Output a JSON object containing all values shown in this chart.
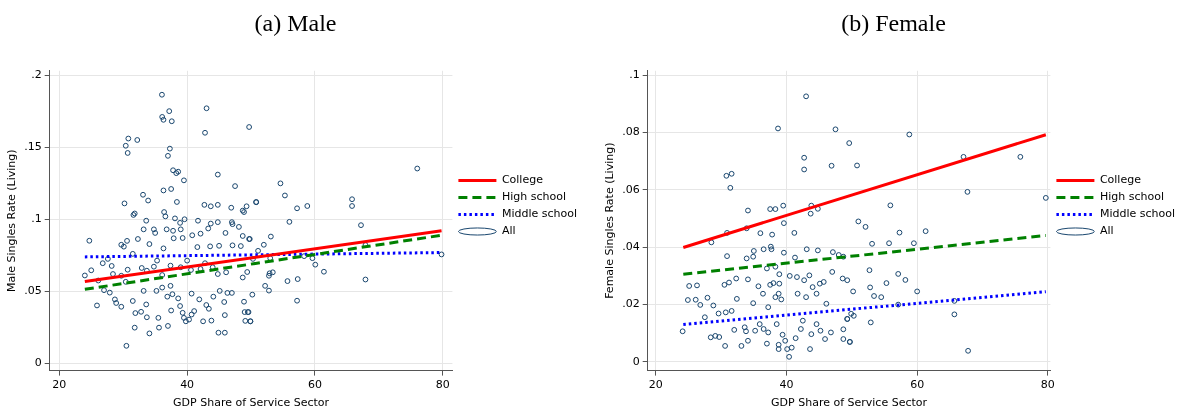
{
  "chart_data": [
    {
      "type": "scatter",
      "title": "(a) Male",
      "xlabel": "GDP Share of Service Sector",
      "ylabel": "Male Singles Rate (Living)",
      "xlim": [
        18.5,
        81.5
      ],
      "ylim": [
        -0.005,
        0.203
      ],
      "xticks": [
        20,
        40,
        60,
        80
      ],
      "yticks": [
        0,
        {
          "value": 0.05,
          "label": ".05"
        },
        {
          "value": 0.1,
          "label": ".1"
        },
        {
          "value": 0.15,
          "label": ".15"
        },
        {
          "value": 0.2,
          "label": ".2"
        }
      ],
      "grid": true,
      "legend": "right",
      "series": [
        {
          "name": "College",
          "type": "line",
          "color": "#ff0000",
          "line_style": "solid",
          "marker": "none",
          "x": [
            24.0,
            79.8
          ],
          "values": [
            0.0568,
            0.092
          ]
        },
        {
          "name": "High school",
          "type": "line",
          "color": "#008000",
          "line_style": "dashed",
          "marker": "none",
          "x": [
            24.0,
            79.8
          ],
          "values": [
            0.0514,
            0.0889
          ]
        },
        {
          "name": "Middle school",
          "type": "line",
          "color": "#0000ff",
          "line_style": "dotted",
          "marker": "none",
          "x": [
            24.0,
            79.8
          ],
          "values": [
            0.0739,
            0.0769
          ]
        },
        {
          "name": "All",
          "type": "scatter",
          "color": "#1a476f",
          "marker": "circle",
          "x": [
            36.06,
            43.04,
            36.1,
            36.3,
            37.2,
            37.6,
            42.8,
            49.7,
            30.8,
            30.4,
            32.2,
            30.7,
            37.3,
            37.0,
            37.8,
            38.6,
            38.3,
            39.5,
            44.8,
            36.3,
            37.5,
            33.1,
            33.9,
            47.5,
            30.2,
            38.4,
            31.6,
            31.8,
            36.4,
            36.6,
            42.7,
            43.7,
            44.8,
            46.9,
            48.7,
            49.3,
            48.9,
            50.8,
            33.6,
            33.2,
            34.8,
            35.0,
            36.8,
            37.8,
            38.1,
            38.9,
            39.6,
            39.0,
            41.7,
            42.1,
            43.7,
            43.3,
            44.8,
            47.0,
            47.1,
            48.1,
            46.0,
            24.7,
            29.7,
            30.1,
            30.6,
            32.3,
            34.1,
            36.3,
            37.9,
            39.3,
            40.8,
            41.6,
            43.6,
            45.0,
            47.1,
            48.4,
            49.7,
            48.7,
            26.8,
            25.0,
            24.0,
            26.1,
            28.2,
            28.4,
            29.7,
            30.7,
            30.4,
            27.6,
            31.5,
            32.9,
            33.7,
            34.8,
            35.3,
            36.1,
            37.4,
            39.0,
            40.0,
            40.6,
            42.1,
            42.8,
            44.0,
            44.8,
            46.1,
            48.7,
            49.4,
            27.0,
            27.9,
            28.7,
            28.9,
            29.7,
            25.9,
            31.5,
            31.9,
            32.8,
            33.6,
            33.7,
            33.2,
            35.2,
            35.5,
            36.1,
            37.4,
            37.7,
            36.9,
            37.5,
            38.6,
            38.9,
            39.3,
            39.5,
            39.8,
            40.3,
            40.7,
            41.1,
            40.7,
            41.9,
            42.5,
            43.0,
            43.8,
            43.4,
            44.1,
            45.1,
            45.8,
            45.9,
            46.3,
            47.0,
            48.9,
            49.0,
            49.5,
            49.9,
            49.1,
            31.8,
            34.1,
            35.6,
            37.0,
            44.9,
            45.9,
            30.5,
            54.6,
            55.3,
            57.2,
            58.8,
            56.0,
            50.8,
            65.8,
            65.8,
            76.0,
            67.2,
            53.1,
            52.0,
            51.1,
            49.8,
            53.0,
            50.3,
            52.9,
            53.4,
            52.8,
            52.2,
            52.8,
            50.2,
            49.6,
            49.9,
            55.7,
            57.3,
            57.2,
            58.3,
            59.6,
            60.05,
            61.4,
            67.9,
            67.9,
            79.8
          ],
          "values": [
            0.1864,
            0.177,
            0.171,
            0.169,
            0.175,
            0.168,
            0.16,
            0.164,
            0.156,
            0.151,
            0.155,
            0.146,
            0.149,
            0.144,
            0.134,
            0.133,
            0.132,
            0.127,
            0.131,
            0.12,
            0.121,
            0.117,
            0.113,
            0.123,
            0.111,
            0.112,
            0.103,
            0.104,
            0.105,
            0.102,
            0.11,
            0.109,
            0.11,
            0.108,
            0.106,
            0.109,
            0.105,
            0.112,
            0.099,
            0.093,
            0.093,
            0.0905,
            0.093,
            0.092,
            0.1006,
            0.0975,
            0.1,
            0.093,
            0.099,
            0.09,
            0.097,
            0.0936,
            0.098,
            0.098,
            0.0966,
            0.0947,
            0.0905,
            0.0851,
            0.0823,
            0.081,
            0.085,
            0.0863,
            0.0828,
            0.0798,
            0.0868,
            0.087,
            0.0889,
            0.0807,
            0.0812,
            0.0816,
            0.0819,
            0.0814,
            0.0863,
            0.0884,
            0.0695,
            0.0646,
            0.061,
            0.0575,
            0.0676,
            0.062,
            0.0608,
            0.065,
            0.0566,
            0.0725,
            0.076,
            0.0662,
            0.0643,
            0.0671,
            0.0713,
            0.0613,
            0.0678,
            0.0667,
            0.0713,
            0.0648,
            0.0655,
            0.0695,
            0.0667,
            0.062,
            0.0632,
            0.0596,
            0.0634,
            0.0508,
            0.0491,
            0.0444,
            0.0419,
            0.0393,
            0.0402,
            0.0433,
            0.0349,
            0.0358,
            0.0409,
            0.032,
            0.0503,
            0.0503,
            0.0316,
            0.0526,
            0.0538,
            0.048,
            0.0463,
            0.0367,
            0.0451,
            0.0398,
            0.0351,
            0.0316,
            0.0292,
            0.0304,
            0.0339,
            0.0363,
            0.0484,
            0.0444,
            0.0292,
            0.0405,
            0.0297,
            0.0379,
            0.0463,
            0.0503,
            0.0426,
            0.0335,
            0.0489,
            0.0489,
            0.0428,
            0.0356,
            0.0356,
            0.0292,
            0.0295,
            0.0248,
            0.0208,
            0.0248,
            0.026,
            0.0213,
            0.0213,
            0.0122,
            0.1249,
            0.1165,
            0.1076,
            0.1092,
            0.0982,
            0.1118,
            0.1139,
            0.1092,
            0.1352,
            0.0959,
            0.088,
            0.0823,
            0.0781,
            0.0863,
            0.073,
            0.0725,
            0.0625,
            0.0632,
            0.0608,
            0.0538,
            0.0505,
            0.0477,
            0.0356,
            0.0292,
            0.0571,
            0.0585,
            0.0435,
            0.0744,
            0.073,
            0.0685,
            0.0636,
            0.0821,
            0.0582,
            0.0756
          ]
        }
      ]
    },
    {
      "type": "scatter",
      "title": "(b) Female",
      "xlabel": "GDP Share of Service Sector",
      "ylabel": "Female Singles Rate (Living)",
      "xlim": [
        18.75,
        80.4
      ],
      "ylim": [
        -0.003,
        0.1015
      ],
      "xticks": [
        20,
        40,
        60,
        80
      ],
      "yticks": [
        0,
        {
          "value": 0.02,
          "label": ".02"
        },
        {
          "value": 0.04,
          "label": ".04"
        },
        {
          "value": 0.06,
          "label": ".06"
        },
        {
          "value": 0.08,
          "label": ".08"
        },
        {
          "value": 0.1,
          "label": ".1"
        }
      ],
      "grid": true,
      "legend": "right",
      "series": [
        {
          "name": "College",
          "type": "line",
          "color": "#ff0000",
          "line_style": "solid",
          "marker": "none",
          "x": [
            24.2,
            79.7
          ],
          "values": [
            0.0399,
            0.0792
          ]
        },
        {
          "name": "High school",
          "type": "line",
          "color": "#008000",
          "line_style": "dashed",
          "marker": "none",
          "x": [
            24.2,
            79.7
          ],
          "values": [
            0.0306,
            0.0441
          ]
        },
        {
          "name": "Middle school",
          "type": "line",
          "color": "#0000ff",
          "line_style": "dotted",
          "marker": "none",
          "x": [
            24.2,
            79.7
          ],
          "values": [
            0.0131,
            0.0245
          ]
        },
        {
          "name": "All",
          "type": "scatter",
          "color": "#1a476f",
          "marker": "circle",
          "x": [
            43.0,
            38.7,
            47.5,
            49.6,
            42.7,
            42.7,
            46.9,
            30.8,
            31.6,
            31.4,
            34.1,
            37.5,
            38.3,
            39.5,
            43.8,
            43.7,
            44.8,
            33.9,
            39.6,
            30.9,
            28.5,
            36.0,
            37.8,
            41.2,
            30.9,
            33.9,
            34.9,
            35.0,
            36.5,
            37.6,
            37.7,
            39.6,
            41.3,
            43.1,
            44.8,
            47.1,
            48.0,
            48.7,
            37.0,
            38.3,
            38.9,
            25.1,
            26.3,
            24.9,
            26.1,
            26.8,
            27.9,
            28.8,
            30.5,
            31.2,
            32.3,
            32.4,
            34.1,
            34.9,
            35.7,
            36.4,
            37.5,
            38.0,
            38.9,
            38.8,
            39.2,
            38.3,
            37.2,
            40.5,
            41.6,
            42.7,
            43.5,
            44.0,
            45.1,
            45.7,
            47.0,
            48.6,
            49.3,
            41.7,
            43.0,
            44.6,
            46.1,
            24.1,
            27.5,
            28.4,
            29.1,
            29.7,
            30.6,
            29.6,
            30.7,
            31.6,
            32.0,
            33.1,
            33.6,
            33.8,
            34.1,
            35.2,
            35.9,
            36.5,
            37.0,
            37.2,
            38.5,
            38.8,
            38.8,
            39.4,
            39.8,
            40.1,
            40.4,
            40.8,
            41.4,
            42.2,
            42.5,
            43.6,
            43.8,
            44.6,
            45.2,
            45.9,
            46.8,
            48.7,
            49.3,
            49.7,
            58.8,
            50.8,
            67.1,
            75.8,
            67.7,
            79.7,
            55.9,
            51.0,
            52.1,
            57.3,
            61.3,
            53.1,
            55.7,
            59.5,
            52.7,
            57.1,
            58.2,
            52.8,
            50.2,
            55.3,
            53.4,
            54.5,
            60.0,
            57.1,
            65.7,
            65.7,
            67.8,
            52.9,
            49.9,
            50.3,
            49.3,
            48.7,
            49.7
          ],
          "values": [
            0.0926,
            0.0814,
            0.0811,
            0.0763,
            0.0712,
            0.0671,
            0.0684,
            0.0649,
            0.0656,
            0.0607,
            0.0528,
            0.0533,
            0.0533,
            0.0545,
            0.0545,
            0.0517,
            0.0534,
            0.0466,
            0.0484,
            0.045,
            0.0417,
            0.0449,
            0.0444,
            0.045,
            0.0369,
            0.0361,
            0.0367,
            0.0387,
            0.0393,
            0.0402,
            0.0393,
            0.0381,
            0.0364,
            0.0393,
            0.0389,
            0.0383,
            0.0373,
            0.0367,
            0.0326,
            0.0332,
            0.0306,
            0.0265,
            0.0267,
            0.0216,
            0.0217,
            0.0199,
            0.0224,
            0.0197,
            0.0269,
            0.0277,
            0.0291,
            0.022,
            0.0288,
            0.0205,
            0.0264,
            0.0238,
            0.0269,
            0.0275,
            0.0273,
            0.0238,
            0.0218,
            0.0226,
            0.0191,
            0.03,
            0.0296,
            0.0285,
            0.0302,
            0.0261,
            0.0273,
            0.0279,
            0.0314,
            0.0291,
            0.0285,
            0.0238,
            0.0226,
            0.0238,
            0.0203,
            0.0107,
            0.0156,
            0.0086,
            0.0091,
            0.0087,
            0.0056,
            0.0169,
            0.0173,
            0.0178,
            0.0112,
            0.0056,
            0.0121,
            0.0107,
            0.0074,
            0.0109,
            0.0132,
            0.0115,
            0.0064,
            0.0103,
            0.0132,
            0.006,
            0.0045,
            0.0095,
            0.0074,
            0.0045,
            0.0018,
            0.005,
            0.0083,
            0.0115,
            0.0144,
            0.0045,
            0.0097,
            0.0132,
            0.0109,
            0.008,
            0.0103,
            0.008,
            0.015,
            0.007,
            0.0793,
            0.0685,
            0.0715,
            0.0715,
            0.0593,
            0.0572,
            0.0546,
            0.049,
            0.0471,
            0.0451,
            0.0456,
            0.0412,
            0.0414,
            0.0414,
            0.032,
            0.0307,
            0.0286,
            0.026,
            0.0246,
            0.0275,
            0.023,
            0.0226,
            0.0246,
            0.02,
            0.0213,
            0.0166,
            0.0039,
            0.0138,
            0.0168,
            0.0161,
            0.015,
            0.0114,
            0.007
          ]
        }
      ]
    }
  ]
}
